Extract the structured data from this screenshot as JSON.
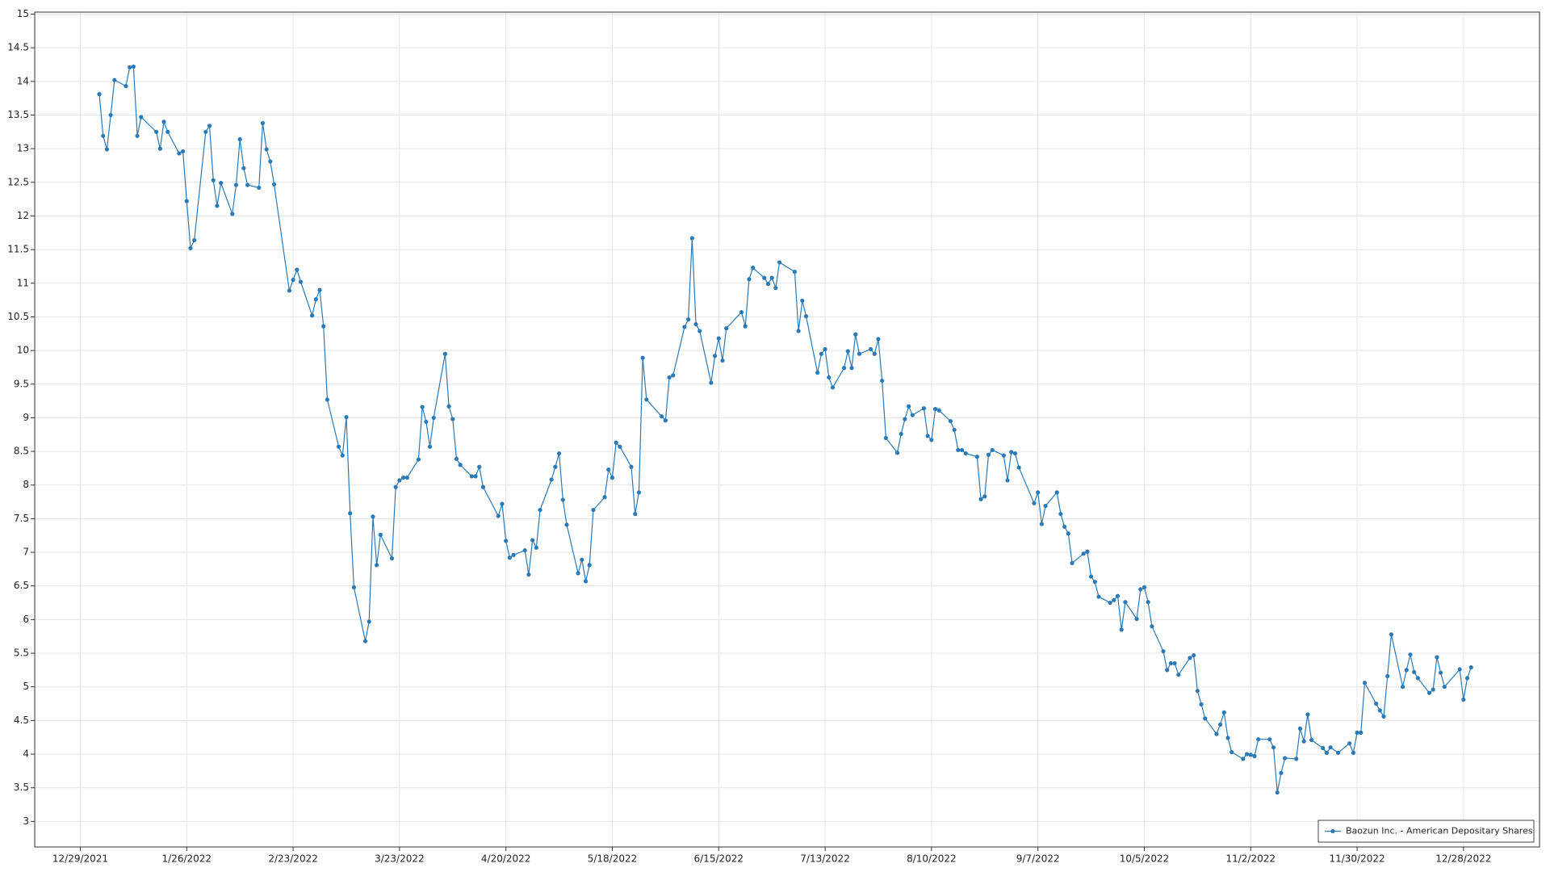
{
  "chart_data": {
    "type": "line",
    "x": [
      "2022-01-03",
      "2022-01-04",
      "2022-01-05",
      "2022-01-06",
      "2022-01-07",
      "2022-01-10",
      "2022-01-11",
      "2022-01-12",
      "2022-01-13",
      "2022-01-14",
      "2022-01-18",
      "2022-01-19",
      "2022-01-20",
      "2022-01-21",
      "2022-01-24",
      "2022-01-25",
      "2022-01-26",
      "2022-01-27",
      "2022-01-28",
      "2022-01-31",
      "2022-02-01",
      "2022-02-02",
      "2022-02-03",
      "2022-02-04",
      "2022-02-07",
      "2022-02-08",
      "2022-02-09",
      "2022-02-10",
      "2022-02-11",
      "2022-02-14",
      "2022-02-15",
      "2022-02-16",
      "2022-02-17",
      "2022-02-18",
      "2022-02-22",
      "2022-02-23",
      "2022-02-24",
      "2022-02-25",
      "2022-02-28",
      "2022-03-01",
      "2022-03-02",
      "2022-03-03",
      "2022-03-04",
      "2022-03-07",
      "2022-03-08",
      "2022-03-09",
      "2022-03-10",
      "2022-03-11",
      "2022-03-14",
      "2022-03-15",
      "2022-03-16",
      "2022-03-17",
      "2022-03-18",
      "2022-03-21",
      "2022-03-22",
      "2022-03-23",
      "2022-03-24",
      "2022-03-25",
      "2022-03-28",
      "2022-03-29",
      "2022-03-30",
      "2022-03-31",
      "2022-04-01",
      "2022-04-04",
      "2022-04-05",
      "2022-04-06",
      "2022-04-07",
      "2022-04-08",
      "2022-04-11",
      "2022-04-12",
      "2022-04-13",
      "2022-04-14",
      "2022-04-18",
      "2022-04-19",
      "2022-04-20",
      "2022-04-21",
      "2022-04-22",
      "2022-04-25",
      "2022-04-26",
      "2022-04-27",
      "2022-04-28",
      "2022-04-29",
      "2022-05-02",
      "2022-05-03",
      "2022-05-04",
      "2022-05-05",
      "2022-05-06",
      "2022-05-09",
      "2022-05-10",
      "2022-05-11",
      "2022-05-12",
      "2022-05-13",
      "2022-05-16",
      "2022-05-17",
      "2022-05-18",
      "2022-05-19",
      "2022-05-20",
      "2022-05-23",
      "2022-05-24",
      "2022-05-25",
      "2022-05-26",
      "2022-05-27",
      "2022-05-31",
      "2022-06-01",
      "2022-06-02",
      "2022-06-03",
      "2022-06-06",
      "2022-06-07",
      "2022-06-08",
      "2022-06-09",
      "2022-06-10",
      "2022-06-13",
      "2022-06-14",
      "2022-06-15",
      "2022-06-16",
      "2022-06-17",
      "2022-06-21",
      "2022-06-22",
      "2022-06-23",
      "2022-06-24",
      "2022-06-27",
      "2022-06-28",
      "2022-06-29",
      "2022-06-30",
      "2022-07-01",
      "2022-07-05",
      "2022-07-06",
      "2022-07-07",
      "2022-07-08",
      "2022-07-11",
      "2022-07-12",
      "2022-07-13",
      "2022-07-14",
      "2022-07-15",
      "2022-07-18",
      "2022-07-19",
      "2022-07-20",
      "2022-07-21",
      "2022-07-22",
      "2022-07-25",
      "2022-07-26",
      "2022-07-27",
      "2022-07-28",
      "2022-07-29",
      "2022-08-01",
      "2022-08-02",
      "2022-08-03",
      "2022-08-04",
      "2022-08-05",
      "2022-08-08",
      "2022-08-09",
      "2022-08-10",
      "2022-08-11",
      "2022-08-12",
      "2022-08-15",
      "2022-08-16",
      "2022-08-17",
      "2022-08-18",
      "2022-08-19",
      "2022-08-22",
      "2022-08-23",
      "2022-08-24",
      "2022-08-25",
      "2022-08-26",
      "2022-08-29",
      "2022-08-30",
      "2022-08-31",
      "2022-09-01",
      "2022-09-02",
      "2022-09-06",
      "2022-09-07",
      "2022-09-08",
      "2022-09-09",
      "2022-09-12",
      "2022-09-13",
      "2022-09-14",
      "2022-09-15",
      "2022-09-16",
      "2022-09-19",
      "2022-09-20",
      "2022-09-21",
      "2022-09-22",
      "2022-09-23",
      "2022-09-26",
      "2022-09-27",
      "2022-09-28",
      "2022-09-29",
      "2022-09-30",
      "2022-10-03",
      "2022-10-04",
      "2022-10-05",
      "2022-10-06",
      "2022-10-07",
      "2022-10-10",
      "2022-10-11",
      "2022-10-12",
      "2022-10-13",
      "2022-10-14",
      "2022-10-17",
      "2022-10-18",
      "2022-10-19",
      "2022-10-20",
      "2022-10-21",
      "2022-10-24",
      "2022-10-25",
      "2022-10-26",
      "2022-10-27",
      "2022-10-28",
      "2022-10-31",
      "2022-11-01",
      "2022-11-02",
      "2022-11-03",
      "2022-11-04",
      "2022-11-07",
      "2022-11-08",
      "2022-11-09",
      "2022-11-10",
      "2022-11-11",
      "2022-11-14",
      "2022-11-15",
      "2022-11-16",
      "2022-11-17",
      "2022-11-18",
      "2022-11-21",
      "2022-11-22",
      "2022-11-23",
      "2022-11-25",
      "2022-11-28",
      "2022-11-29",
      "2022-11-30",
      "2022-12-01",
      "2022-12-02",
      "2022-12-05",
      "2022-12-06",
      "2022-12-07",
      "2022-12-08",
      "2022-12-09",
      "2022-12-12",
      "2022-12-13",
      "2022-12-14",
      "2022-12-15",
      "2022-12-16",
      "2022-12-19",
      "2022-12-20",
      "2022-12-21",
      "2022-12-22",
      "2022-12-23",
      "2022-12-27",
      "2022-12-28",
      "2022-12-29",
      "2022-12-30"
    ],
    "series": [
      {
        "name": "Baozun Inc. - American Depositary Shares",
        "color": "#2a7ab7",
        "values": [
          13.81,
          13.19,
          12.99,
          13.5,
          14.02,
          13.93,
          14.21,
          14.22,
          13.19,
          13.47,
          13.25,
          13.0,
          13.4,
          13.25,
          12.93,
          12.96,
          12.22,
          11.52,
          11.64,
          13.25,
          13.34,
          12.53,
          12.15,
          12.49,
          12.03,
          12.46,
          13.14,
          12.71,
          12.46,
          12.42,
          13.38,
          12.99,
          12.81,
          12.47,
          10.89,
          11.05,
          11.2,
          11.02,
          10.52,
          10.76,
          10.9,
          10.36,
          9.27,
          8.57,
          8.44,
          9.01,
          7.58,
          6.48,
          5.68,
          5.97,
          7.53,
          6.81,
          7.26,
          6.91,
          7.97,
          8.07,
          8.11,
          8.11,
          8.38,
          9.16,
          8.94,
          8.57,
          9.0,
          9.95,
          9.17,
          8.98,
          8.39,
          8.3,
          8.13,
          8.13,
          8.27,
          7.97,
          7.54,
          7.72,
          7.17,
          6.92,
          6.96,
          7.03,
          6.67,
          7.18,
          7.07,
          7.63,
          8.08,
          8.27,
          8.47,
          7.78,
          7.41,
          6.69,
          6.89,
          6.57,
          6.81,
          7.63,
          7.82,
          8.23,
          8.11,
          8.63,
          8.57,
          8.27,
          7.57,
          7.89,
          9.89,
          9.27,
          9.02,
          8.96,
          9.6,
          9.63,
          10.35,
          10.46,
          11.67,
          10.39,
          10.29,
          9.52,
          9.92,
          10.18,
          9.85,
          10.33,
          10.57,
          10.36,
          11.06,
          11.23,
          11.08,
          10.99,
          11.08,
          10.93,
          11.31,
          11.17,
          10.29,
          10.74,
          10.51,
          9.67,
          9.95,
          10.02,
          9.6,
          9.45,
          9.74,
          9.99,
          9.74,
          10.24,
          9.95,
          10.02,
          9.95,
          10.17,
          9.55,
          8.7,
          8.48,
          8.76,
          8.98,
          9.17,
          9.04,
          9.14,
          8.73,
          8.67,
          9.13,
          9.11,
          8.95,
          8.82,
          8.52,
          8.52,
          8.47,
          8.42,
          7.79,
          7.83,
          8.45,
          8.52,
          8.44,
          8.07,
          8.49,
          8.47,
          8.26,
          7.73,
          7.89,
          7.42,
          7.69,
          7.89,
          7.57,
          7.38,
          7.28,
          6.84,
          6.98,
          7.01,
          6.64,
          6.56,
          6.34,
          6.25,
          6.29,
          6.35,
          5.85,
          6.26,
          6.01,
          6.45,
          6.48,
          6.26,
          5.9,
          5.53,
          5.25,
          5.35,
          5.35,
          5.18,
          5.43,
          5.47,
          4.94,
          4.74,
          4.53,
          4.3,
          4.44,
          4.62,
          4.24,
          4.03,
          3.93,
          4.0,
          3.99,
          3.97,
          4.22,
          4.22,
          4.1,
          3.43,
          3.72,
          3.94,
          3.93,
          4.38,
          4.19,
          4.59,
          4.21,
          4.09,
          4.02,
          4.1,
          4.02,
          4.16,
          4.02,
          4.32,
          4.32,
          5.06,
          4.75,
          4.65,
          4.56,
          5.16,
          5.78,
          5.0,
          5.25,
          5.48,
          5.22,
          5.13,
          4.91,
          4.96,
          5.44,
          5.21,
          5.0,
          5.26,
          4.81,
          5.13,
          5.29
        ]
      }
    ],
    "xlim": [
      "2021-12-17",
      "2023-01-17"
    ],
    "xticks": [
      {
        "value": "2021-12-29",
        "label": "12/29/2021"
      },
      {
        "value": "2022-01-26",
        "label": "1/26/2022"
      },
      {
        "value": "2022-02-23",
        "label": "2/23/2022"
      },
      {
        "value": "2022-03-23",
        "label": "3/23/2022"
      },
      {
        "value": "2022-04-20",
        "label": "4/20/2022"
      },
      {
        "value": "2022-05-18",
        "label": "5/18/2022"
      },
      {
        "value": "2022-06-15",
        "label": "6/15/2022"
      },
      {
        "value": "2022-07-13",
        "label": "7/13/2022"
      },
      {
        "value": "2022-08-10",
        "label": "8/10/2022"
      },
      {
        "value": "2022-09-07",
        "label": "9/7/2022"
      },
      {
        "value": "2022-10-05",
        "label": "10/5/2022"
      },
      {
        "value": "2022-11-02",
        "label": "11/2/2022"
      },
      {
        "value": "2022-11-30",
        "label": "11/30/2022"
      },
      {
        "value": "2022-12-28",
        "label": "12/28/2022"
      }
    ],
    "ylim": [
      2.62,
      15.03
    ],
    "yticks": [
      3,
      3.5,
      4,
      4.5,
      5,
      5.5,
      6,
      6.5,
      7,
      7.5,
      8,
      8.5,
      9,
      9.5,
      10,
      10.5,
      11,
      11.5,
      12,
      12.5,
      13,
      13.5,
      14,
      14.5,
      15
    ],
    "grid": true,
    "legend": "lower right"
  }
}
